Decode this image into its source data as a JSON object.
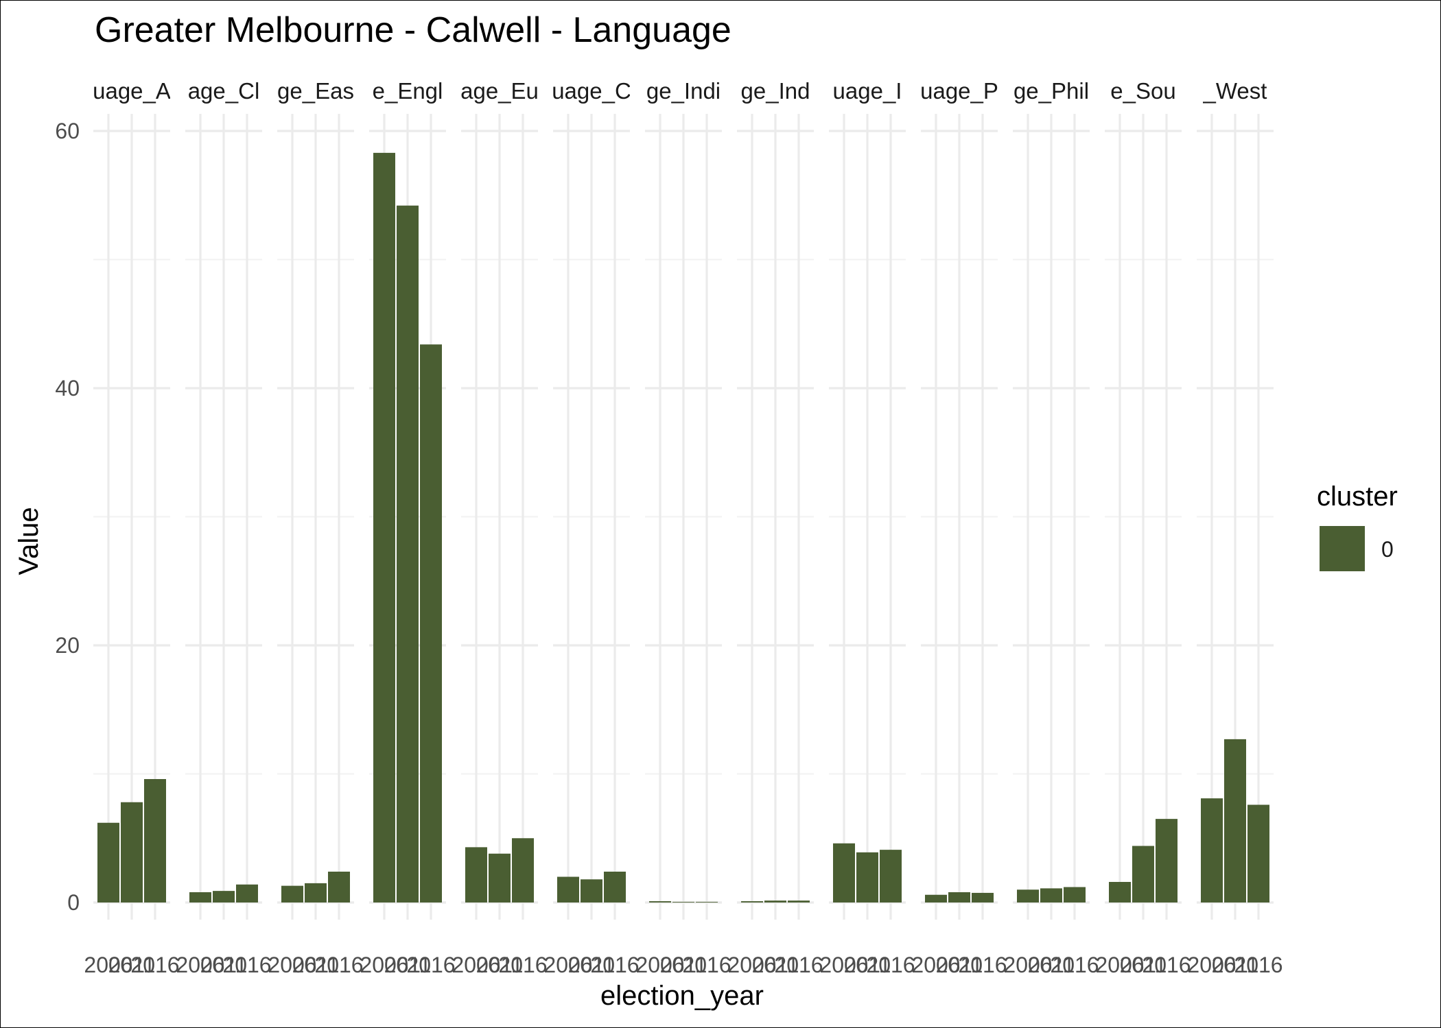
{
  "chart_data": {
    "type": "bar",
    "title": "Greater Melbourne - Calwell - Language",
    "xlabel": "election_year",
    "ylabel": "Value",
    "ylim": [
      0,
      62
    ],
    "yticks": [
      0,
      20,
      40,
      60
    ],
    "grid": true,
    "legend": {
      "title": "cluster",
      "placement": "right",
      "entries": [
        {
          "label": "0",
          "color": "#4a5e32"
        }
      ]
    },
    "bar_color": "#4a5e32",
    "x": [
      "2006",
      "2011",
      "2016"
    ],
    "x_tick_text": [
      "2006",
      "2011",
      "2016"
    ],
    "facets": [
      {
        "label": "uage_A",
        "values": [
          6.2,
          7.8,
          9.6
        ]
      },
      {
        "label": "age_Cl",
        "values": [
          0.8,
          0.9,
          1.4
        ]
      },
      {
        "label": "ge_Eas",
        "values": [
          1.3,
          1.5,
          2.4
        ]
      },
      {
        "label": "e_Engl",
        "values": [
          58.3,
          54.2,
          43.4
        ]
      },
      {
        "label": "age_Eu",
        "values": [
          4.3,
          3.8,
          5.0
        ]
      },
      {
        "label": "uage_C",
        "values": [
          2.0,
          1.8,
          2.4
        ]
      },
      {
        "label": "ge_Indi",
        "values": [
          0.1,
          0.05,
          0.05
        ]
      },
      {
        "label": "ge_Ind",
        "values": [
          0.1,
          0.15,
          0.15
        ]
      },
      {
        "label": "uage_I",
        "values": [
          4.6,
          3.9,
          4.1
        ]
      },
      {
        "label": "uage_P",
        "values": [
          0.6,
          0.8,
          0.75
        ]
      },
      {
        "label": "ge_Phil",
        "values": [
          1.0,
          1.1,
          1.2
        ]
      },
      {
        "label": "e_Sou",
        "values": [
          1.6,
          4.4,
          6.5
        ]
      },
      {
        "label": "_West",
        "values": [
          8.1,
          12.7,
          7.6
        ]
      }
    ]
  }
}
